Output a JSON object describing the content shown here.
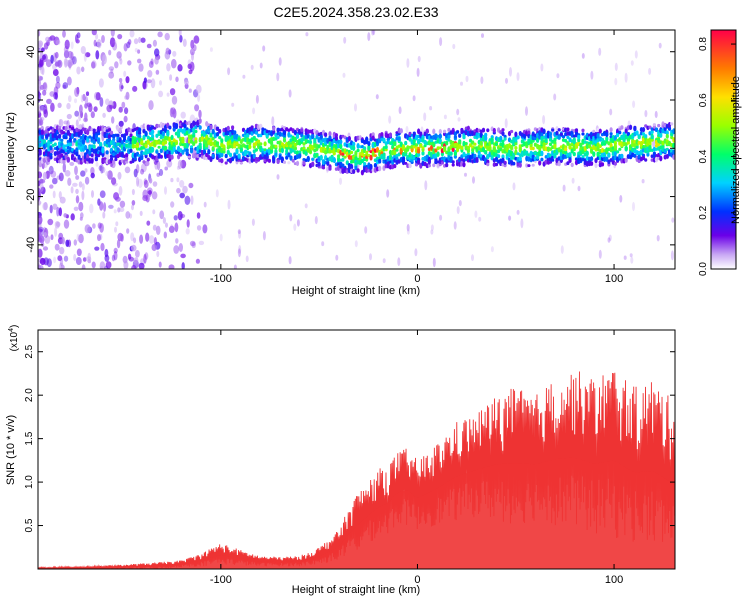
{
  "title": "C2E5.2024.358.23.02.E33",
  "chart_data": [
    {
      "type": "heatmap",
      "xlabel": "Height of straight line (km)",
      "ylabel": "Frequency (Hz)",
      "xlim": [
        -193,
        131
      ],
      "ylim": [
        -50,
        49
      ],
      "xticks": [
        -100,
        0,
        100
      ],
      "yticks": [
        -40,
        -20,
        0,
        20,
        40
      ],
      "band_center_hz": [
        [
          -190,
          2
        ],
        [
          -150,
          1
        ],
        [
          -110,
          4
        ],
        [
          -100,
          1
        ],
        [
          -80,
          2
        ],
        [
          -60,
          1
        ],
        [
          -40,
          -2
        ],
        [
          -30,
          -3
        ],
        [
          -10,
          0
        ],
        [
          10,
          0
        ],
        [
          30,
          1
        ],
        [
          50,
          0
        ],
        [
          70,
          1
        ],
        [
          90,
          0
        ],
        [
          110,
          2
        ],
        [
          131,
          3
        ]
      ],
      "colorbar": {
        "label": "Normalized spectral amplitude",
        "range": [
          0.0,
          0.85
        ],
        "ticks": [
          0.0,
          0.2,
          0.4,
          0.6,
          0.8
        ]
      }
    },
    {
      "type": "area",
      "xlabel": "Height of straight line (km)",
      "ylabel": "SNR (10 * v/v)",
      "y_multiplier": "(x10",
      "y_multiplier_exp": "4",
      "y_multiplier_close": ")",
      "xlim": [
        -193,
        131
      ],
      "ylim": [
        0,
        2.75
      ],
      "xticks": [
        -100,
        0,
        100
      ],
      "yticks": [
        0.5,
        1.0,
        1.5,
        2.0,
        2.5
      ],
      "series": [
        {
          "color": "#ee3333",
          "x": [
            -193,
            -170,
            -150,
            -130,
            -120,
            -110,
            -100,
            -90,
            -80,
            -70,
            -60,
            -50,
            -40,
            -35,
            -30,
            -25,
            -20,
            -15,
            -10,
            -5,
            0,
            10,
            20,
            30,
            40,
            50,
            60,
            70,
            80,
            90,
            100,
            110,
            120,
            131
          ],
          "upper": [
            0.02,
            0.03,
            0.05,
            0.08,
            0.1,
            0.18,
            0.3,
            0.22,
            0.15,
            0.14,
            0.15,
            0.25,
            0.45,
            0.7,
            0.9,
            1.0,
            1.15,
            1.2,
            1.35,
            1.4,
            1.25,
            1.45,
            1.7,
            1.8,
            2.0,
            2.1,
            2.0,
            2.2,
            2.3,
            2.2,
            2.35,
            2.1,
            2.2,
            1.9
          ],
          "lower": [
            0.0,
            0.0,
            0.0,
            0.0,
            0.02,
            0.03,
            0.05,
            0.04,
            0.03,
            0.03,
            0.03,
            0.05,
            0.1,
            0.15,
            0.2,
            0.3,
            0.35,
            0.4,
            0.5,
            0.5,
            0.45,
            0.5,
            0.55,
            0.6,
            0.55,
            0.5,
            0.55,
            0.5,
            0.45,
            0.4,
            0.35,
            0.3,
            0.25,
            0.2
          ]
        }
      ]
    }
  ]
}
